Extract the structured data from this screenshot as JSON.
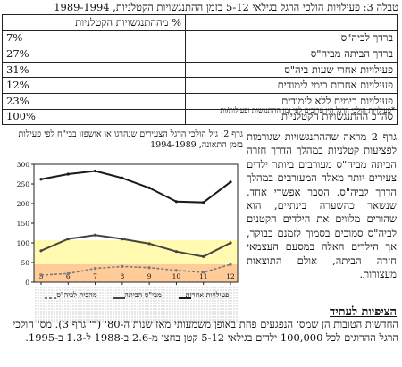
{
  "table": {
    "title": "טבלה 3: פעילויות הולכי הרגל בגילאי 5-12 בזמן ההתנגשויות הקטלניות, 1989-1994",
    "header": "% מההתנגשויות הקטלניות",
    "rows": [
      {
        "label": "ברדך לביה\"ס",
        "value": "7%"
      },
      {
        "label": "ברדך הביתה מביה\"ס",
        "value": "27%"
      },
      {
        "label": "פעילויות אחרי שעות ביה\"ס",
        "value": "31%"
      },
      {
        "label": "פעילויות אחרות בימי לימודים",
        "value": "12%"
      },
      {
        "label": "פעילויות בימים ללא לימודים",
        "value": "23%"
      }
    ],
    "total": {
      "label": "סה\"כ ההתנגשויות הקטלניות",
      "value": "100%"
    },
    "note": "*פעילויות הולכי הרגל היו ערוכים לפי זמן ההתנגשות ופעילות/ות"
  },
  "chart": {
    "title": "גרף 2: גיל הולכי הרגל הצעירים שנהרגו או אושפזו בבי\"ח לפי פעילות בזמן התאונה, 1994-1989",
    "legend": [
      {
        "label": "פעילויות אחרות",
        "color": "#1a1a1a"
      },
      {
        "label": "מבי\"ס הביתה",
        "color": "#444444"
      },
      {
        "label": "מהבית לביה\"ס",
        "color": "#7a7a7a"
      }
    ]
  },
  "chart_data": {
    "type": "line",
    "title": "גרף 2: גיל הולכי הרגל הצעירים שנהרגו או אושפזו בבי\"ח לפי פעילות בזמן התאונה, 1994-1989",
    "xlabel": "",
    "ylabel": "",
    "x": [
      5,
      6,
      7,
      8,
      9,
      10,
      11,
      12
    ],
    "ylim": [
      0,
      300
    ],
    "yticks": [
      0,
      50,
      100,
      150,
      200,
      250,
      300
    ],
    "grid": false,
    "legend_position": "bottom",
    "series": [
      {
        "name": "פעילויות אחרות",
        "values": [
          262,
          275,
          283,
          265,
          240,
          205,
          203,
          255
        ]
      },
      {
        "name": "מבי\"ס הביתה",
        "values": [
          80,
          110,
          120,
          110,
          98,
          78,
          65,
          100
        ]
      },
      {
        "name": "מהבית לביה\"ס",
        "values": [
          18,
          22,
          35,
          40,
          37,
          30,
          25,
          45
        ]
      }
    ]
  },
  "paragraph": "גרף 2 מראה שההתנגשויות שגורמות לפציעות קטלניות במהלך הדרך חזרה הביתה מביה\"ס מעורבים ביותר ילדים צעירים יותר מאלה המעורבים במהלך הדרך לביה\"ס. הסבר אפשרי אחד, שנשאר כהשערה בינתיים, הוא שהורים מלווים את הילדים הקטנים לביה\"ס סמוכים בסמוך לזמנם בבוקר, אך הילדים האלה במסעם העצמאי חזרה הביתה, אולם התוצאות מעצורות.",
  "section": {
    "title": "הציפיות לעתיד",
    "body": "החדשות הטובות הן שמס' הנפגעים פחת באופן משמעותי מאז שנות ה-80' (ר' גרף 3). מס' הולכי הרגל ההרוגים לכל 100,000 ילדים בגילאי 5-12 קטן בחצי מ-2.6 ב-1988 ל-1.3 ב-1995."
  }
}
